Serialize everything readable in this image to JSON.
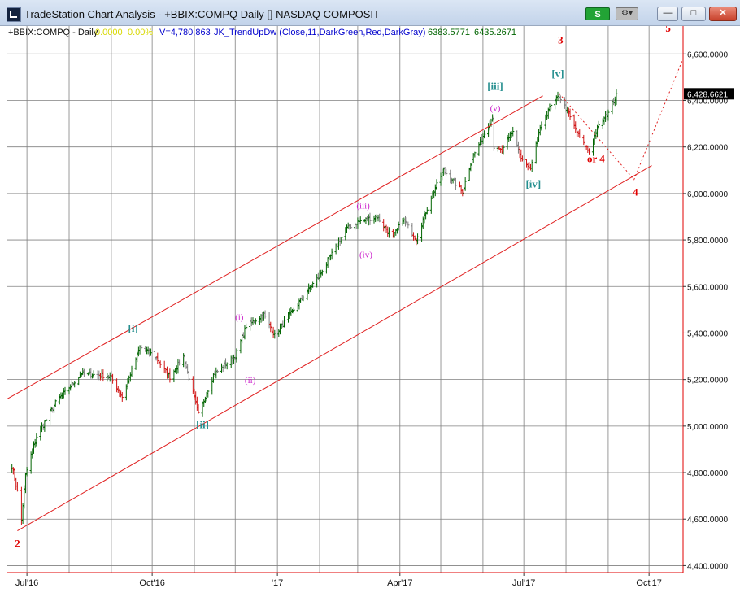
{
  "window": {
    "title": "TradeStation Chart Analysis - +BBIX:COMPQ Daily [] NASDAQ COMPOSIT",
    "s_button": "S",
    "gear_icon": "gear-icon",
    "minimize_icon": "minimize-icon",
    "maximize_icon": "maximize-icon",
    "close_icon": "close-icon"
  },
  "chart_data": {
    "type": "bar",
    "symbol": "+BBIX:COMPQ - Daily",
    "status_line": {
      "change": "0.0000",
      "change_pct": "0.00%",
      "volume": "V=4,780,863",
      "indicator": "JK_TrendUpDw (Close,11,DarkGreen,Red,DarkGray)",
      "indicator_values": [
        "6383.5771",
        "6435.2671"
      ]
    },
    "last_price": "6,428.6621",
    "x_labels": [
      "Jul'16",
      "Oct'16",
      "'17",
      "Apr'17",
      "Jul'17",
      "Oct'17"
    ],
    "y_labels": [
      "6,600.0000",
      "6,400.0000",
      "6,200.0000",
      "6,000.0000",
      "5,800.0000",
      "5,600.0000",
      "5,400.0000",
      "5,200.0000",
      "5,000.0000",
      "4,800.0000",
      "4,600.0000",
      "4,400.0000"
    ],
    "ylim": [
      4370,
      6720
    ],
    "xlim": [
      "2016-06-16",
      "2017-10-26"
    ],
    "grid": true,
    "colors": {
      "up": "#006400",
      "down": "#d01515",
      "neutral": "#7f7f7f",
      "channel": "#e02020",
      "labels_red": "#e00000",
      "labels_teal": "#258f8f",
      "labels_magenta": "#cc22cc",
      "grid": "#808080",
      "price_axis": "#e00000"
    },
    "price_path": [
      [
        "2016-06-20",
        4830
      ],
      [
        "2016-06-24",
        4720
      ],
      [
        "2016-06-27",
        4595
      ],
      [
        "2016-06-30",
        4790
      ],
      [
        "2016-07-08",
        4955
      ],
      [
        "2016-07-22",
        5100
      ],
      [
        "2016-08-10",
        5225
      ],
      [
        "2016-08-31",
        5215
      ],
      [
        "2016-09-09",
        5125
      ],
      [
        "2016-09-22",
        5340
      ],
      [
        "2016-10-03",
        5300
      ],
      [
        "2016-10-14",
        5210
      ],
      [
        "2016-10-24",
        5300
      ],
      [
        "2016-11-04",
        5050
      ],
      [
        "2016-11-15",
        5220
      ],
      [
        "2016-12-01",
        5300
      ],
      [
        "2016-12-09",
        5430
      ],
      [
        "2016-12-22",
        5480
      ],
      [
        "2016-12-30",
        5390
      ],
      [
        "2017-01-18",
        5540
      ],
      [
        "2017-02-01",
        5650
      ],
      [
        "2017-02-21",
        5850
      ],
      [
        "2017-03-02",
        5880
      ],
      [
        "2017-03-15",
        5900
      ],
      [
        "2017-03-27",
        5810
      ],
      [
        "2017-04-03",
        5890
      ],
      [
        "2017-04-13",
        5805
      ],
      [
        "2017-04-24",
        5985
      ],
      [
        "2017-05-03",
        6100
      ],
      [
        "2017-05-17",
        6010
      ],
      [
        "2017-05-24",
        6150
      ],
      [
        "2017-06-08",
        6330
      ],
      [
        "2017-06-09",
        6200
      ],
      [
        "2017-06-15",
        6180
      ],
      [
        "2017-06-23",
        6270
      ],
      [
        "2017-06-29",
        6150
      ],
      [
        "2017-07-06",
        6100
      ],
      [
        "2017-07-12",
        6260
      ],
      [
        "2017-07-19",
        6360
      ],
      [
        "2017-07-27",
        6420
      ],
      [
        "2017-08-03",
        6340
      ],
      [
        "2017-08-10",
        6250
      ],
      [
        "2017-08-18",
        6180
      ],
      [
        "2017-08-24",
        6280
      ],
      [
        "2017-08-30",
        6330
      ],
      [
        "2017-09-06",
        6410
      ],
      [
        "2017-09-07",
        6428.66
      ]
    ],
    "channel_lines": [
      {
        "from": [
          "2016-06-16",
          5115
        ],
        "to": [
          "2017-07-15",
          6420
        ]
      },
      {
        "from": [
          "2016-06-24",
          4550
        ],
        "to": [
          "2017-10-03",
          6120
        ]
      }
    ],
    "projection": {
      "points": [
        [
          "2017-07-27",
          6430
        ],
        [
          "2017-09-20",
          6060
        ],
        [
          "2017-10-26",
          6580
        ]
      ],
      "style": "dotted"
    },
    "annotations": [
      {
        "text": "2",
        "x": "2016-06-24",
        "y": 4480,
        "color": "red",
        "weight": "bold"
      },
      {
        "text": "3",
        "x": "2017-07-28",
        "y": 6645,
        "color": "red",
        "weight": "bold"
      },
      {
        "text": "5",
        "x": "2017-10-15",
        "y": 6695,
        "color": "red",
        "weight": "bold"
      },
      {
        "text": "4",
        "x": "2017-09-21",
        "y": 5990,
        "color": "red",
        "weight": "bold"
      },
      {
        "text": "or 4",
        "x": "2017-08-23",
        "y": 6135,
        "color": "red",
        "weight": "bold"
      },
      {
        "text": "[i]",
        "x": "2016-09-17",
        "y": 5405,
        "color": "teal",
        "weight": "bold"
      },
      {
        "text": "[ii]",
        "x": "2016-11-07",
        "y": 4990,
        "color": "teal",
        "weight": "bold"
      },
      {
        "text": "[iii]",
        "x": "2017-06-10",
        "y": 6445,
        "color": "teal",
        "weight": "bold"
      },
      {
        "text": "[iv]",
        "x": "2017-07-08",
        "y": 6025,
        "color": "teal",
        "weight": "bold"
      },
      {
        "text": "[v]",
        "x": "2017-07-26",
        "y": 6500,
        "color": "teal",
        "weight": "bold"
      },
      {
        "text": "(i)",
        "x": "2016-12-04",
        "y": 5455,
        "color": "magenta",
        "weight": "normal"
      },
      {
        "text": "(ii)",
        "x": "2016-12-12",
        "y": 5185,
        "color": "magenta",
        "weight": "normal"
      },
      {
        "text": "(iii)",
        "x": "2017-03-05",
        "y": 5935,
        "color": "magenta",
        "weight": "normal"
      },
      {
        "text": "(iv)",
        "x": "2017-03-07",
        "y": 5725,
        "color": "magenta",
        "weight": "normal"
      },
      {
        "text": "(v)",
        "x": "2017-06-10",
        "y": 6355,
        "color": "magenta",
        "weight": "normal"
      }
    ]
  }
}
